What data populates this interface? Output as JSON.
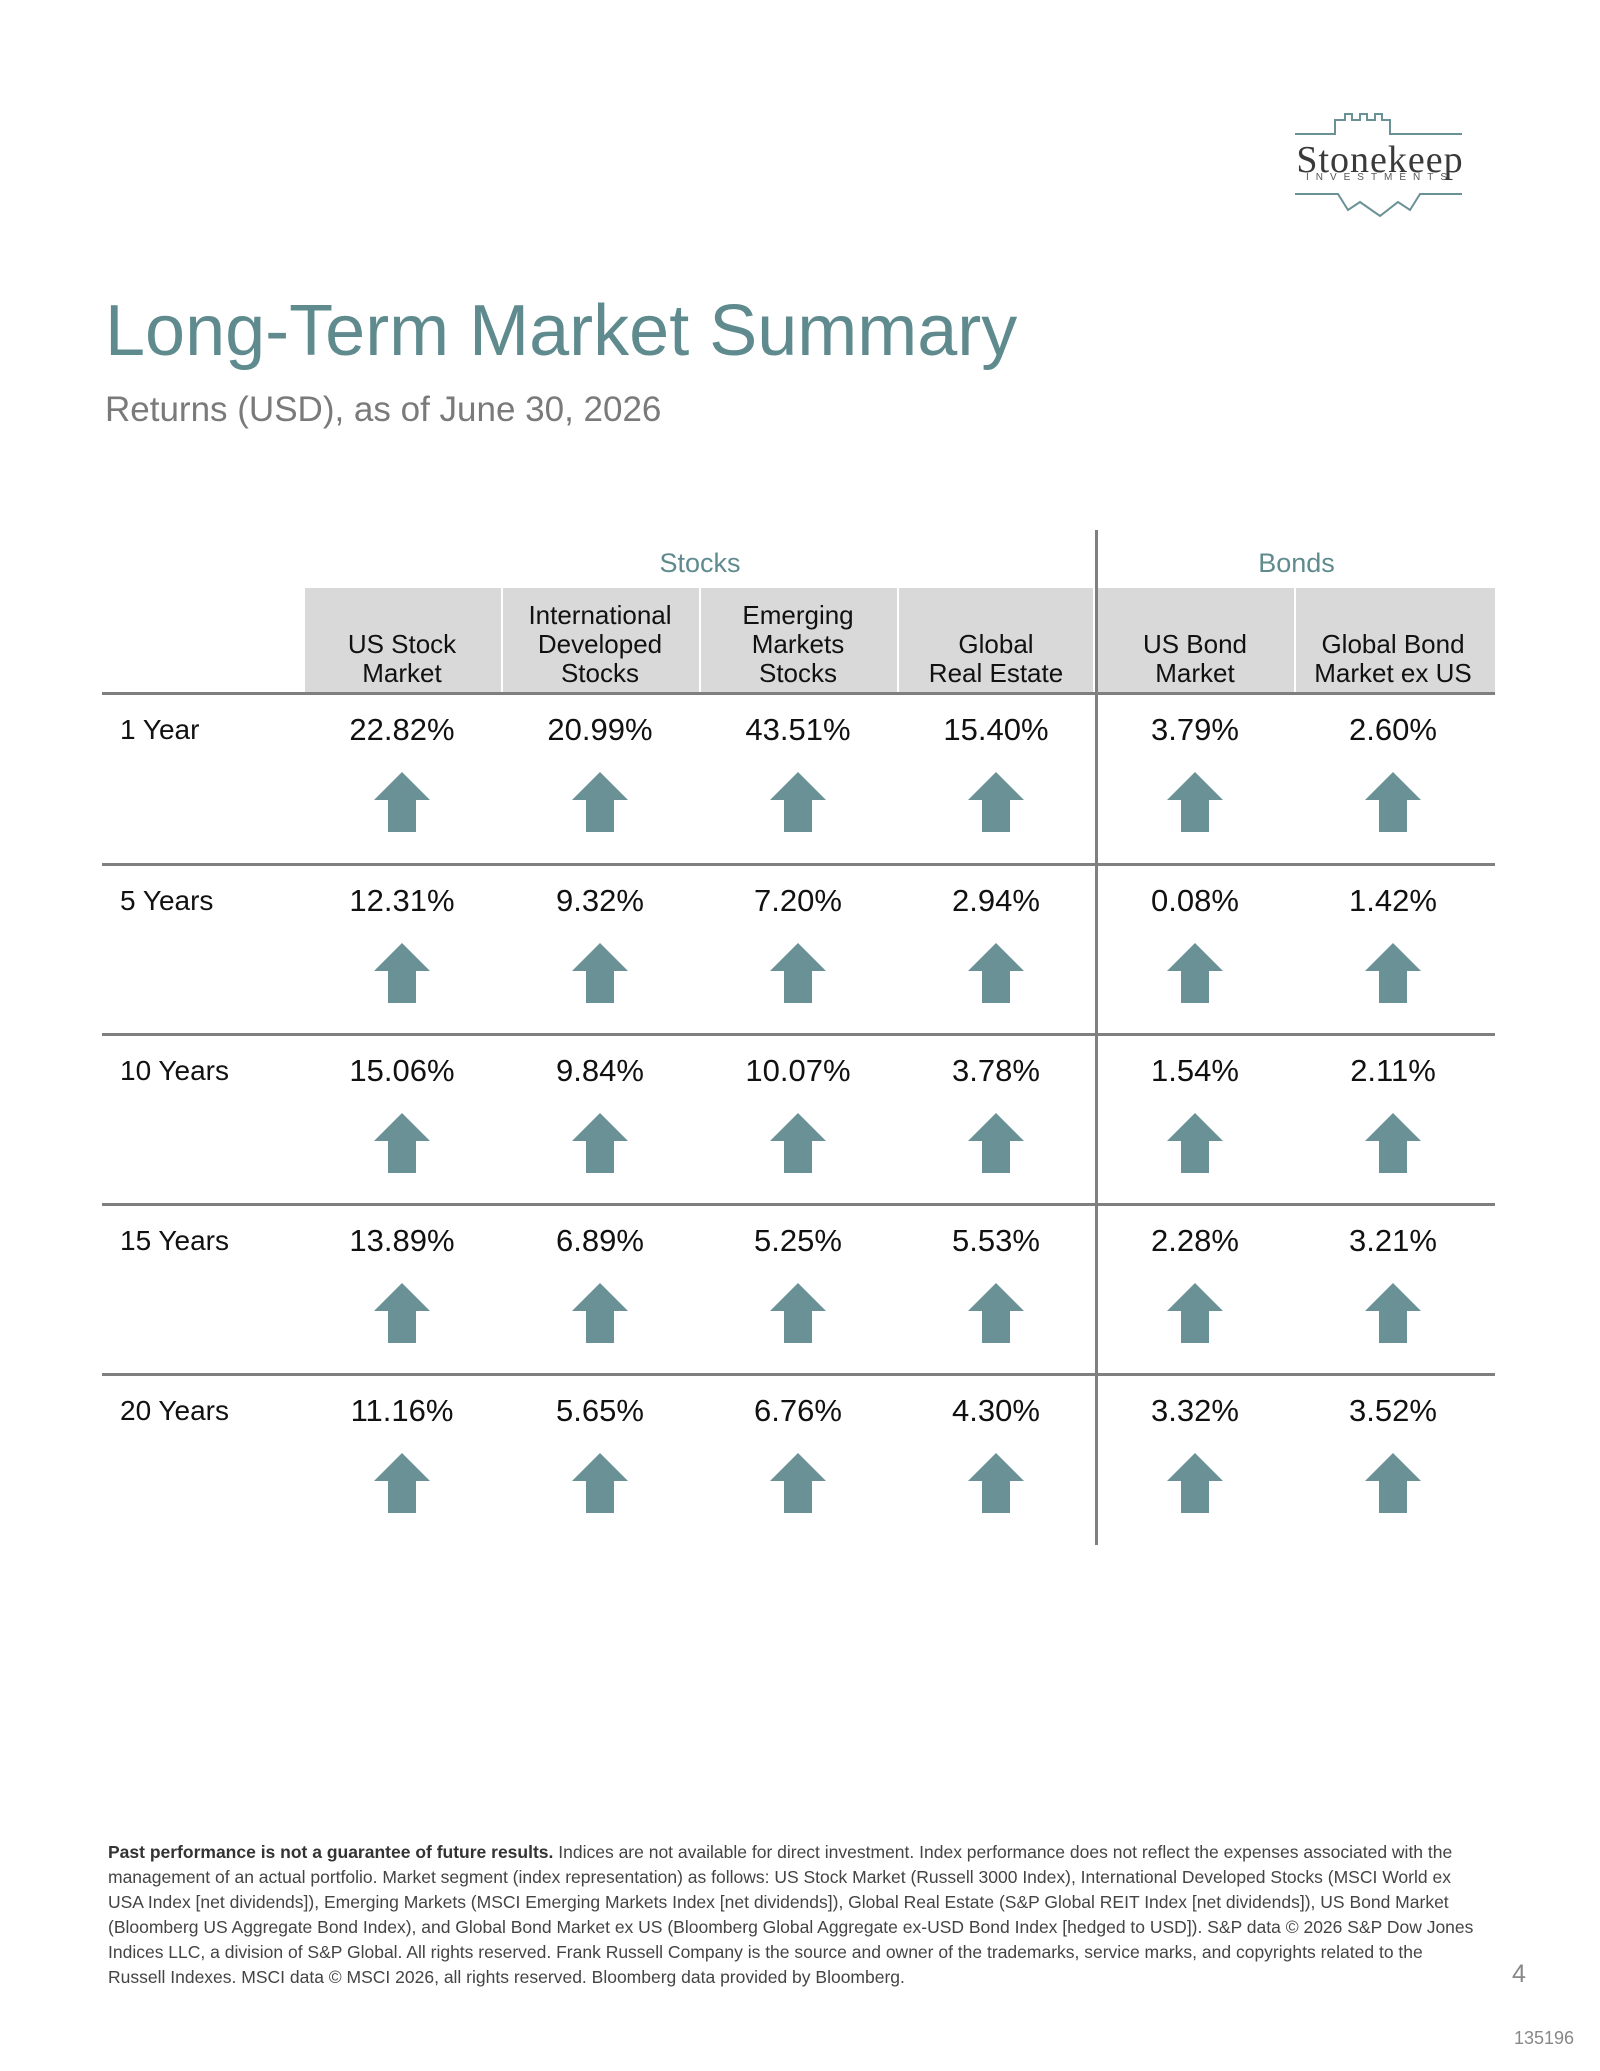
{
  "logo": {
    "word": "Stonekeep",
    "sub": "INVESTMENTS"
  },
  "header": {
    "title": "Long-Term Market Summary",
    "subtitle": "Returns (USD), as of June 30, 2026"
  },
  "table": {
    "groups": [
      {
        "label": "Stocks"
      },
      {
        "label": "Bonds"
      }
    ],
    "columns": [
      {
        "label": "US Stock\nMarket"
      },
      {
        "label": "International\nDeveloped\nStocks"
      },
      {
        "label": "Emerging\nMarkets\nStocks"
      },
      {
        "label": "Global\nReal Estate"
      },
      {
        "label": "US Bond\nMarket"
      },
      {
        "label": "Global Bond\nMarket ex US"
      }
    ],
    "rows": [
      {
        "label": "1 Year",
        "values": [
          "22.82%",
          "20.99%",
          "43.51%",
          "15.40%",
          "3.79%",
          "2.60%"
        ],
        "direction": [
          "up",
          "up",
          "up",
          "up",
          "up",
          "up"
        ]
      },
      {
        "label": "5 Years",
        "values": [
          "12.31%",
          "9.32%",
          "7.20%",
          "2.94%",
          "0.08%",
          "1.42%"
        ],
        "direction": [
          "up",
          "up",
          "up",
          "up",
          "up",
          "up"
        ]
      },
      {
        "label": "10 Years",
        "values": [
          "15.06%",
          "9.84%",
          "10.07%",
          "3.78%",
          "1.54%",
          "2.11%"
        ],
        "direction": [
          "up",
          "up",
          "up",
          "up",
          "up",
          "up"
        ]
      },
      {
        "label": "15 Years",
        "values": [
          "13.89%",
          "6.89%",
          "5.25%",
          "5.53%",
          "2.28%",
          "3.21%"
        ],
        "direction": [
          "up",
          "up",
          "up",
          "up",
          "up",
          "up"
        ]
      },
      {
        "label": "20 Years",
        "values": [
          "11.16%",
          "5.65%",
          "6.76%",
          "4.30%",
          "3.32%",
          "3.52%"
        ],
        "direction": [
          "up",
          "up",
          "up",
          "up",
          "up",
          "up"
        ]
      }
    ]
  },
  "icons": {
    "arrow": "up-arrow-icon"
  },
  "colors": {
    "accent": "#5f8b8e",
    "arrow": "#6a9296",
    "header_bg": "#d9d9d9",
    "rule": "#7f7f7f"
  },
  "footnote": {
    "lead": "Past performance is not a guarantee of future results.",
    "body": " Indices are not available for direct investment. Index performance does not reflect the expenses associated with the management of an actual portfolio. Market segment (index representation) as follows: US Stock Market (Russell 3000 Index), International Developed Stocks (MSCI World ex USA Index [net dividends]), Emerging Markets (MSCI Emerging Markets Index [net dividends]), Global Real Estate (S&P Global REIT Index [net dividends]), US Bond Market (Bloomberg US Aggregate Bond Index), and Global Bond Market ex US (Bloomberg Global Aggregate ex-USD Bond Index [hedged to USD]). S&P data © 2026 S&P Dow Jones Indices LLC, a division of S&P Global. All rights reserved. Frank Russell Company is the source and owner of the trademarks, service marks, and copyrights related to the Russell Indexes. MSCI data © MSCI 2026, all rights reserved. Bloomberg data provided by Bloomberg."
  },
  "page_number": "4",
  "doc_id": "135196"
}
